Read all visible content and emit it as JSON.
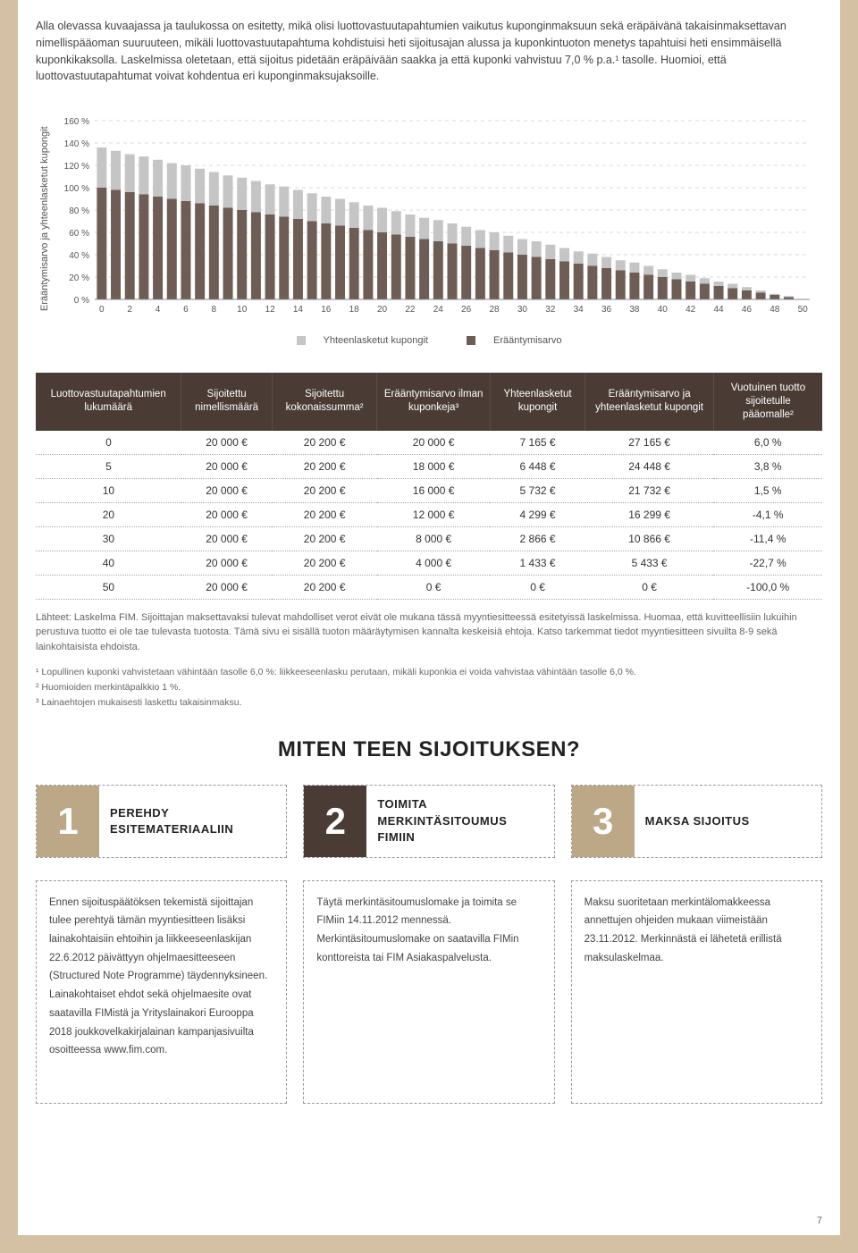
{
  "intro": "Alla olevassa kuvaajassa ja taulukossa on esitetty, mikä olisi luottovastuutapahtumien vaikutus kuponginmaksuun sekä eräpäivänä takaisinmaksettavan nimellispääoman suuruuteen, mikäli luottovastuutapahtuma kohdistuisi heti sijoitusajan alussa ja kuponkintuoton menetys tapahtuisi heti ensimmäisellä kuponkikaksolla. Laskelmissa oletetaan, että sijoitus pidetään eräpäivään saakka ja että kuponki vahvistuu 7,0 % p.a.¹ tasolle. Huomioi, että luottovastuutapahtumat voivat kohdentua eri kuponginmaksujaksoille.",
  "chart": {
    "type": "stacked-bar",
    "y_label": "Erääntymisarvo ja yhteenlasketut kupongit",
    "y_min": 0,
    "y_max": 160,
    "y_step": 20,
    "x_ticks": [
      0,
      2,
      4,
      6,
      8,
      10,
      12,
      14,
      16,
      18,
      20,
      22,
      24,
      26,
      28,
      30,
      32,
      34,
      36,
      38,
      40,
      42,
      44,
      46,
      48,
      50
    ],
    "background_color": "#ffffff",
    "grid_color": "#d9d9d9",
    "series": [
      {
        "name": "Yhteenlasketut kupongit",
        "color": "#c5c5c5"
      },
      {
        "name": "Erääntymisarvo",
        "color": "#6e5d54"
      }
    ],
    "data_maturity": [
      100,
      98,
      96,
      94,
      92,
      90,
      88,
      86,
      84,
      82,
      80,
      78,
      76,
      74,
      72,
      70,
      68,
      66,
      64,
      62,
      60,
      58,
      56,
      54,
      52,
      50,
      48,
      46,
      44,
      42,
      40,
      38,
      36,
      34,
      32,
      30,
      28,
      26,
      24,
      22,
      20,
      18,
      16,
      14,
      12,
      10,
      8,
      6,
      4,
      2,
      0
    ],
    "data_coupons": [
      36,
      35,
      34,
      34,
      33,
      32,
      32,
      31,
      30,
      29,
      29,
      28,
      27,
      27,
      26,
      25,
      24,
      24,
      23,
      22,
      22,
      21,
      20,
      19,
      19,
      18,
      17,
      16,
      16,
      15,
      14,
      14,
      13,
      12,
      11,
      11,
      10,
      9,
      9,
      8,
      7,
      6,
      6,
      5,
      4,
      4,
      3,
      2,
      1,
      1,
      0
    ]
  },
  "chart_legend": {
    "coupons": "Yhteenlasketut kupongit",
    "maturity": "Erääntymisarvo"
  },
  "table": {
    "headers": [
      "Luottovastuutapahtumien lukumäärä",
      "Sijoitettu nimellismäärä",
      "Sijoitettu kokonaissumma²",
      "Erääntymisarvo ilman kuponkeja³",
      "Yhteenlasketut kupongit",
      "Erääntymisarvo ja yhteenlasketut kupongit",
      "Vuotuinen tuotto sijoitetulle pääomalle²"
    ],
    "rows": [
      [
        "0",
        "20 000 €",
        "20 200 €",
        "20 000 €",
        "7 165 €",
        "27 165 €",
        "6,0 %"
      ],
      [
        "5",
        "20 000 €",
        "20 200 €",
        "18 000 €",
        "6 448 €",
        "24 448 €",
        "3,8 %"
      ],
      [
        "10",
        "20 000 €",
        "20 200 €",
        "16 000 €",
        "5 732 €",
        "21 732 €",
        "1,5 %"
      ],
      [
        "20",
        "20 000 €",
        "20 200 €",
        "12 000 €",
        "4 299 €",
        "16 299 €",
        "-4,1 %"
      ],
      [
        "30",
        "20 000 €",
        "20 200 €",
        "8 000 €",
        "2 866 €",
        "10 866 €",
        "-11,4 %"
      ],
      [
        "40",
        "20 000 €",
        "20 200 €",
        "4 000 €",
        "1 433 €",
        "5 433 €",
        "-22,7 %"
      ],
      [
        "50",
        "20 000 €",
        "20 200 €",
        "0 €",
        "0 €",
        "0 €",
        "-100,0 %"
      ]
    ]
  },
  "sources": "Lähteet: Laskelma FIM. Sijoittajan maksettavaksi tulevat mahdolliset verot eivät ole mukana tässä myyntiesitteessä esitetyissä laskelmissa. Huomaa, että kuvitteellisiin lukuihin perustuva tuotto ei ole tae tulevasta tuotosta. Tämä sivu ei sisällä tuoton määräytymisen kannalta keskeisiä ehtoja. Katso tarkemmat tiedot myyntiesitteen sivuilta 8-9 sekä lainkohtaisista ehdoista.",
  "footnotes": [
    "¹ Lopullinen kuponki vahvistetaan vähintään tasolle 6,0 %: liikkeeseenlasku perutaan, mikäli kuponkia ei voida vahvistaa vähintään tasolle 6,0 %.",
    "² Huomioiden merkintäpalkkio 1 %.",
    "³ Lainaehtojen mukaisesti laskettu takaisinmaksu."
  ],
  "section_title": "MITEN TEEN SIJOITUKSEN?",
  "steps": [
    {
      "num": "1",
      "label": "PEREHDY ESITEMATERIAALIIN",
      "color": "#bca886",
      "body": "Ennen sijoituspäätöksen tekemistä sijoittajan tulee perehtyä tämän myyntiesitteen lisäksi lainakohtaisiin ehtoihin ja liikkeeseenlaskijan 22.6.2012 päivättyyn ohjelmaesitteeseen (Structured Note Programme) täydennyksineen. Lainakohtaiset ehdot sekä ohjelmaesite ovat saatavilla FIMistä ja Yrityslainakori Eurooppa 2018 joukkovelkakirjalainan kampanjasivuilta osoitteessa www.fim.com."
    },
    {
      "num": "2",
      "label": "TOIMITA MERKINTÄSITOUMUS FIMIIN",
      "color": "#4a3b34",
      "body": "Täytä merkintäsitoumuslomake ja toimita se FIMiin 14.11.2012 mennessä. Merkintäsitoumuslomake on saatavilla FIMin konttoreista tai FIM Asiakaspalvelusta."
    },
    {
      "num": "3",
      "label": "MAKSA SIJOITUS",
      "color": "#bca886",
      "body": "Maksu suoritetaan merkintälomakkeessa annettujen ohjeiden mukaan viimeistään 23.11.2012. Merkinnästä ei lähetetä erillistä maksulaskelmaa."
    }
  ],
  "page_number": "7"
}
